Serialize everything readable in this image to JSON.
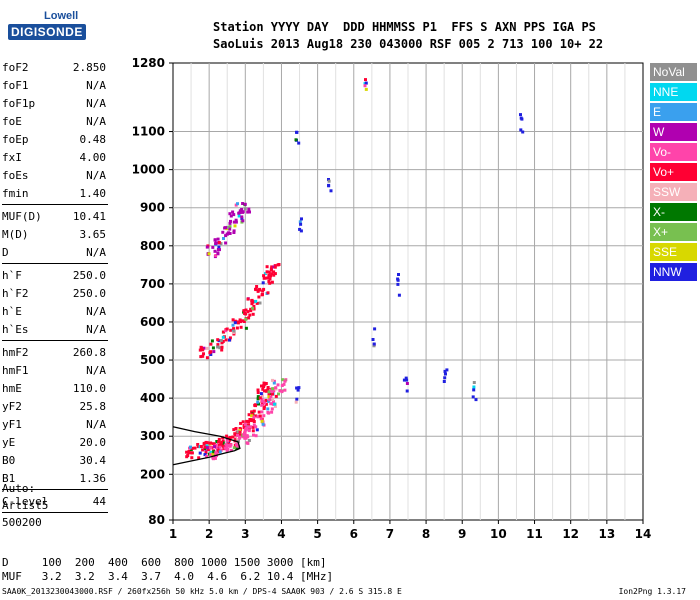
{
  "logo": {
    "brand": "Lowell",
    "product": "DIGISONDE"
  },
  "header": {
    "line1": "Station YYYY DAY  DDD HHMMSS P1  FFS S AXN PPS IGA PS",
    "line2": "SaoLuis 2013 Aug18 230 043000 RSF 005 2 713 100 10+ 22"
  },
  "params": [
    {
      "name": "foF2",
      "value": "2.850"
    },
    {
      "name": "foF1",
      "value": "N/A"
    },
    {
      "name": "foF1p",
      "value": "N/A"
    },
    {
      "name": "foE",
      "value": "N/A"
    },
    {
      "name": "foEp",
      "value": "0.48"
    },
    {
      "name": "fxI",
      "value": "4.00"
    },
    {
      "name": "foEs",
      "value": "N/A"
    },
    {
      "name": "fmin",
      "value": "1.40"
    },
    {
      "sep": true
    },
    {
      "name": "MUF(D)",
      "value": "10.41"
    },
    {
      "name": "M(D)",
      "value": "3.65"
    },
    {
      "name": "D",
      "value": "N/A"
    },
    {
      "sep": true
    },
    {
      "name": "h`F",
      "value": "250.0"
    },
    {
      "name": "h`F2",
      "value": "250.0"
    },
    {
      "name": "h`E",
      "value": "N/A"
    },
    {
      "name": "h`Es",
      "value": "N/A"
    },
    {
      "sep": true
    },
    {
      "name": "hmF2",
      "value": "260.8"
    },
    {
      "name": "hmF1",
      "value": "N/A"
    },
    {
      "name": "hmE",
      "value": "110.0"
    },
    {
      "name": "yF2",
      "value": "25.8"
    },
    {
      "name": "yF1",
      "value": "N/A"
    },
    {
      "name": "yE",
      "value": "20.0"
    },
    {
      "name": "B0",
      "value": "30.4"
    },
    {
      "name": "B1",
      "value": "1.36"
    },
    {
      "sep": true
    },
    {
      "name": "C-level",
      "value": "44"
    },
    {
      "sep": true
    }
  ],
  "auto": {
    "l1": "Auto:",
    "l2": "Artist5",
    "l3": "500200"
  },
  "dmuf": {
    "d_row": "D     100  200  400  600  800 1000 1500 3000 [km]",
    "muf_row": "MUF   3.2  3.2  3.4  3.7  4.0  4.6  6.2 10.4 [MHz]"
  },
  "footer": "SAA0K_2013230043000.RSF / 260fx256h 50 kHz 5.0 km / DPS-4 SAA0K 903 / 2.6 S 315.8 E",
  "version": "Ion2Png 1.3.17",
  "legend": [
    {
      "label": "NoVal",
      "color": "#909090"
    },
    {
      "label": "NNE",
      "color": "#00d8f0"
    },
    {
      "label": "E",
      "color": "#3aa0ee"
    },
    {
      "label": "W",
      "color": "#b000b0"
    },
    {
      "label": "Vo-",
      "color": "#ff44aa"
    },
    {
      "label": "Vo+",
      "color": "#ff0033"
    },
    {
      "label": "SSW",
      "color": "#f5b0b8"
    },
    {
      "label": "X-",
      "color": "#007800"
    },
    {
      "label": "X+",
      "color": "#78c050"
    },
    {
      "label": "SSE",
      "color": "#d8d800"
    },
    {
      "label": "NNW",
      "color": "#2020e0"
    }
  ],
  "chart_data": {
    "type": "scatter",
    "title": "",
    "xlabel": "",
    "ylabel": "",
    "x_ticks": [
      1,
      2,
      3,
      4,
      5,
      6,
      7,
      8,
      9,
      10,
      11,
      12,
      13,
      14
    ],
    "y_ticks": [
      80,
      200,
      300,
      400,
      500,
      600,
      700,
      800,
      900,
      1000,
      1100,
      1280
    ],
    "xlim": [
      1,
      14
    ],
    "ylim": [
      80,
      1280
    ],
    "grid": true,
    "clusters": [
      {
        "name": "F-trace o",
        "color": "#ff0033",
        "points": [
          [
            1.5,
            262
          ],
          [
            1.8,
            268
          ],
          [
            2.0,
            272
          ],
          [
            2.2,
            278
          ],
          [
            2.4,
            285
          ],
          [
            2.6,
            295
          ],
          [
            2.8,
            310
          ],
          [
            3.0,
            330
          ],
          [
            3.2,
            355
          ],
          [
            3.4,
            385
          ],
          [
            3.5,
            410
          ],
          [
            3.6,
            430
          ]
        ]
      },
      {
        "name": "F-trace x",
        "color": "#ff44aa",
        "points": [
          [
            2.0,
            260
          ],
          [
            2.3,
            268
          ],
          [
            2.6,
            280
          ],
          [
            2.9,
            300
          ],
          [
            3.1,
            320
          ],
          [
            3.3,
            345
          ],
          [
            3.6,
            380
          ],
          [
            3.8,
            410
          ],
          [
            3.9,
            440
          ]
        ]
      },
      {
        "name": "2F-trace",
        "color": "#ff0033",
        "points": [
          [
            1.9,
            525
          ],
          [
            2.2,
            545
          ],
          [
            2.5,
            570
          ],
          [
            2.8,
            595
          ],
          [
            3.0,
            620
          ],
          [
            3.2,
            650
          ],
          [
            3.4,
            685
          ],
          [
            3.6,
            720
          ],
          [
            3.7,
            740
          ]
        ]
      },
      {
        "name": "3F-trace",
        "color": "#b000b0",
        "points": [
          [
            2.1,
            790
          ],
          [
            2.3,
            820
          ],
          [
            2.5,
            850
          ],
          [
            2.7,
            880
          ],
          [
            2.9,
            905
          ]
        ]
      },
      {
        "name": "high-freq columns",
        "color": "#2020e0",
        "points": [
          [
            4.4,
            1100
          ],
          [
            4.5,
            850
          ],
          [
            4.4,
            420
          ],
          [
            5.3,
            960
          ],
          [
            6.3,
            1230
          ],
          [
            6.5,
            560
          ],
          [
            7.2,
            700
          ],
          [
            7.4,
            430
          ],
          [
            8.5,
            470
          ],
          [
            9.3,
            420
          ],
          [
            10.6,
            1120
          ]
        ]
      }
    ],
    "model_profile": {
      "name": "profile",
      "color": "#000000",
      "points": [
        [
          1.0,
          225
        ],
        [
          1.6,
          237
        ],
        [
          2.0,
          245
        ],
        [
          2.4,
          255
        ],
        [
          2.7,
          262
        ],
        [
          2.85,
          268
        ],
        [
          2.8,
          285
        ],
        [
          2.3,
          300
        ],
        [
          1.6,
          312
        ],
        [
          1.0,
          325
        ]
      ]
    }
  }
}
